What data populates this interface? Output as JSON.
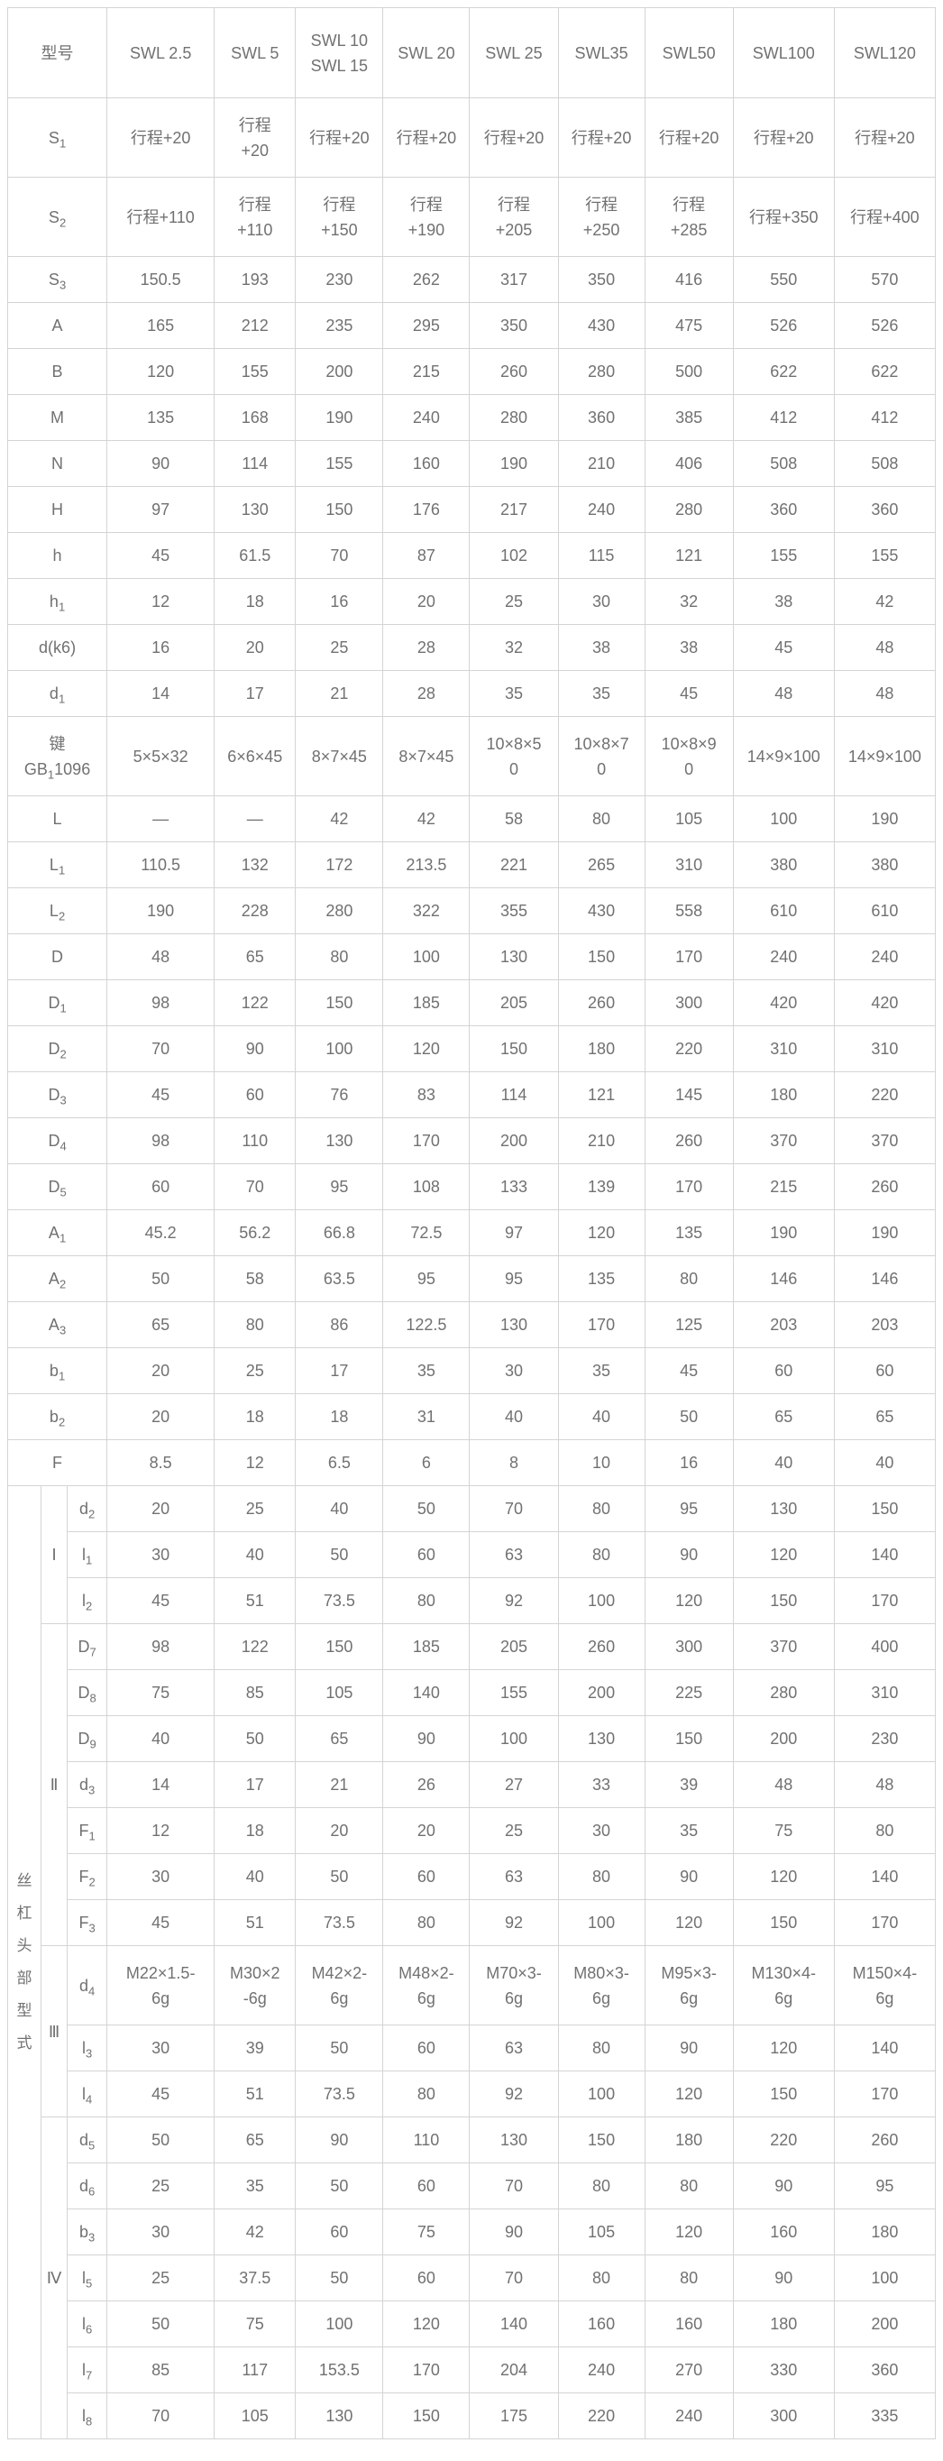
{
  "colors": {
    "text": "#717171",
    "border": "#d4d4d4",
    "background": "#ffffff"
  },
  "table": {
    "corner_label": "型号",
    "models": [
      "SWL 2.5",
      "SWL 5",
      "SWL 10 SWL 15",
      "SWL 20",
      "SWL 25",
      "SWL35",
      "SWL50",
      "SWL100",
      "SWL120"
    ],
    "rows": [
      {
        "label": "S_{1}",
        "values": [
          "行程+20",
          "行程+20",
          "行程+20",
          "行程+20",
          "行程+20",
          "行程+20",
          "行程+20",
          "行程+20",
          "行程+20"
        ]
      },
      {
        "label": "S_{2}",
        "values": [
          "行程+110",
          "行程+110",
          "行程+150",
          "行程+190",
          "行程+205",
          "行程+250",
          "行程+285",
          "行程+350",
          "行程+400"
        ]
      },
      {
        "label": "S_{3}",
        "values": [
          "150.5",
          "193",
          "230",
          "262",
          "317",
          "350",
          "416",
          "550",
          "570"
        ]
      },
      {
        "label": "A",
        "values": [
          "165",
          "212",
          "235",
          "295",
          "350",
          "430",
          "475",
          "526",
          "526"
        ]
      },
      {
        "label": "B",
        "values": [
          "120",
          "155",
          "200",
          "215",
          "260",
          "280",
          "500",
          "622",
          "622"
        ]
      },
      {
        "label": "M",
        "values": [
          "135",
          "168",
          "190",
          "240",
          "280",
          "360",
          "385",
          "412",
          "412"
        ]
      },
      {
        "label": "N",
        "values": [
          "90",
          "114",
          "155",
          "160",
          "190",
          "210",
          "406",
          "508",
          "508"
        ]
      },
      {
        "label": "H",
        "values": [
          "97",
          "130",
          "150",
          "176",
          "217",
          "240",
          "280",
          "360",
          "360"
        ]
      },
      {
        "label": "h",
        "values": [
          "45",
          "61.5",
          "70",
          "87",
          "102",
          "115",
          "121",
          "155",
          "155"
        ]
      },
      {
        "label": "h_{1}",
        "values": [
          "12",
          "18",
          "16",
          "20",
          "25",
          "30",
          "32",
          "38",
          "42"
        ]
      },
      {
        "label": "d(k6)",
        "values": [
          "16",
          "20",
          "25",
          "28",
          "32",
          "38",
          "38",
          "45",
          "48"
        ]
      },
      {
        "label": "d_{1}",
        "values": [
          "14",
          "17",
          "21",
          "28",
          "35",
          "35",
          "45",
          "48",
          "48"
        ]
      },
      {
        "label": "键\nGB_{1}1096",
        "values": [
          "5×5×32",
          "6×6×45",
          "8×7×45",
          "8×7×45",
          "10×8×50",
          "10×8×70",
          "10×8×90",
          "14×9×100",
          "14×9×100"
        ]
      },
      {
        "label": "L",
        "values": [
          "—",
          "—",
          "42",
          "42",
          "58",
          "80",
          "105",
          "100",
          "190"
        ]
      },
      {
        "label": "L_{1}",
        "values": [
          "110.5",
          "132",
          "172",
          "213.5",
          "221",
          "265",
          "310",
          "380",
          "380"
        ]
      },
      {
        "label": "L_{2}",
        "values": [
          "190",
          "228",
          "280",
          "322",
          "355",
          "430",
          "558",
          "610",
          "610"
        ]
      },
      {
        "label": "D",
        "values": [
          "48",
          "65",
          "80",
          "100",
          "130",
          "150",
          "170",
          "240",
          "240"
        ]
      },
      {
        "label": "D_{1}",
        "values": [
          "98",
          "122",
          "150",
          "185",
          "205",
          "260",
          "300",
          "420",
          "420"
        ]
      },
      {
        "label": "D_{2}",
        "values": [
          "70",
          "90",
          "100",
          "120",
          "150",
          "180",
          "220",
          "310",
          "310"
        ]
      },
      {
        "label": "D_{3}",
        "values": [
          "45",
          "60",
          "76",
          "83",
          "114",
          "121",
          "145",
          "180",
          "220"
        ]
      },
      {
        "label": "D_{4}",
        "values": [
          "98",
          "110",
          "130",
          "170",
          "200",
          "210",
          "260",
          "370",
          "370"
        ]
      },
      {
        "label": "D_{5}",
        "values": [
          "60",
          "70",
          "95",
          "108",
          "133",
          "139",
          "170",
          "215",
          "260"
        ]
      },
      {
        "label": "A_{1}",
        "values": [
          "45.2",
          "56.2",
          "66.8",
          "72.5",
          "97",
          "120",
          "135",
          "190",
          "190"
        ]
      },
      {
        "label": "A_{2}",
        "values": [
          "50",
          "58",
          "63.5",
          "95",
          "95",
          "135",
          "80",
          "146",
          "146"
        ]
      },
      {
        "label": "A_{3}",
        "values": [
          "65",
          "80",
          "86",
          "122.5",
          "130",
          "170",
          "125",
          "203",
          "203"
        ]
      },
      {
        "label": "b_{1}",
        "values": [
          "20",
          "25",
          "17",
          "35",
          "30",
          "35",
          "45",
          "60",
          "60"
        ]
      },
      {
        "label": "b_{2}",
        "values": [
          "20",
          "18",
          "18",
          "31",
          "40",
          "40",
          "50",
          "65",
          "65"
        ]
      },
      {
        "label": "F",
        "values": [
          "8.5",
          "12",
          "6.5",
          "6",
          "8",
          "10",
          "16",
          "40",
          "40"
        ]
      }
    ],
    "screw_head_section": {
      "title": "丝杠头部型式",
      "groups": [
        {
          "numeral": "Ⅰ",
          "rows": [
            {
              "label": "d_{2}",
              "values": [
                "20",
                "25",
                "40",
                "50",
                "70",
                "80",
                "95",
                "130",
                "150"
              ]
            },
            {
              "label": "l_{1}",
              "values": [
                "30",
                "40",
                "50",
                "60",
                "63",
                "80",
                "90",
                "120",
                "140"
              ]
            },
            {
              "label": "l_{2}",
              "values": [
                "45",
                "51",
                "73.5",
                "80",
                "92",
                "100",
                "120",
                "150",
                "170"
              ]
            }
          ]
        },
        {
          "numeral": "Ⅱ",
          "rows": [
            {
              "label": "D_{7}",
              "values": [
                "98",
                "122",
                "150",
                "185",
                "205",
                "260",
                "300",
                "370",
                "400"
              ]
            },
            {
              "label": "D_{8}",
              "values": [
                "75",
                "85",
                "105",
                "140",
                "155",
                "200",
                "225",
                "280",
                "310"
              ]
            },
            {
              "label": "D_{9}",
              "values": [
                "40",
                "50",
                "65",
                "90",
                "100",
                "130",
                "150",
                "200",
                "230"
              ]
            },
            {
              "label": "d_{3}",
              "values": [
                "14",
                "17",
                "21",
                "26",
                "27",
                "33",
                "39",
                "48",
                "48"
              ]
            },
            {
              "label": "F_{1}",
              "values": [
                "12",
                "18",
                "20",
                "20",
                "25",
                "30",
                "35",
                "75",
                "80"
              ]
            },
            {
              "label": "F_{2}",
              "values": [
                "30",
                "40",
                "50",
                "60",
                "63",
                "80",
                "90",
                "120",
                "140"
              ]
            },
            {
              "label": "F_{3}",
              "values": [
                "45",
                "51",
                "73.5",
                "80",
                "92",
                "100",
                "120",
                "150",
                "170"
              ]
            }
          ]
        },
        {
          "numeral": "Ⅲ",
          "rows": [
            {
              "label": "d_{4}",
              "values": [
                "M22×1.5-6g",
                "M30×2-6g",
                "M42×2-6g",
                "M48×2-6g",
                "M70×3-6g",
                "M80×3-6g",
                "M95×3-6g",
                "M130×4-6g",
                "M150×4-6g"
              ]
            },
            {
              "label": "l_{3}",
              "values": [
                "30",
                "39",
                "50",
                "60",
                "63",
                "80",
                "90",
                "120",
                "140"
              ]
            },
            {
              "label": "l_{4}",
              "values": [
                "45",
                "51",
                "73.5",
                "80",
                "92",
                "100",
                "120",
                "150",
                "170"
              ]
            }
          ]
        },
        {
          "numeral": "Ⅳ",
          "rows": [
            {
              "label": "d_{5}",
              "values": [
                "50",
                "65",
                "90",
                "110",
                "130",
                "150",
                "180",
                "220",
                "260"
              ]
            },
            {
              "label": "d_{6}",
              "values": [
                "25",
                "35",
                "50",
                "60",
                "70",
                "80",
                "80",
                "90",
                "95"
              ]
            },
            {
              "label": "b_{3}",
              "values": [
                "30",
                "42",
                "60",
                "75",
                "90",
                "105",
                "120",
                "160",
                "180"
              ]
            },
            {
              "label": "l_{5}",
              "values": [
                "25",
                "37.5",
                "50",
                "60",
                "70",
                "80",
                "80",
                "90",
                "100"
              ]
            },
            {
              "label": "l_{6}",
              "values": [
                "50",
                "75",
                "100",
                "120",
                "140",
                "160",
                "160",
                "180",
                "200"
              ]
            },
            {
              "label": "l_{7}",
              "values": [
                "85",
                "117",
                "153.5",
                "170",
                "204",
                "240",
                "270",
                "330",
                "360"
              ]
            },
            {
              "label": "l_{8}",
              "values": [
                "70",
                "105",
                "130",
                "150",
                "175",
                "220",
                "240",
                "300",
                "335"
              ]
            }
          ]
        }
      ]
    }
  }
}
